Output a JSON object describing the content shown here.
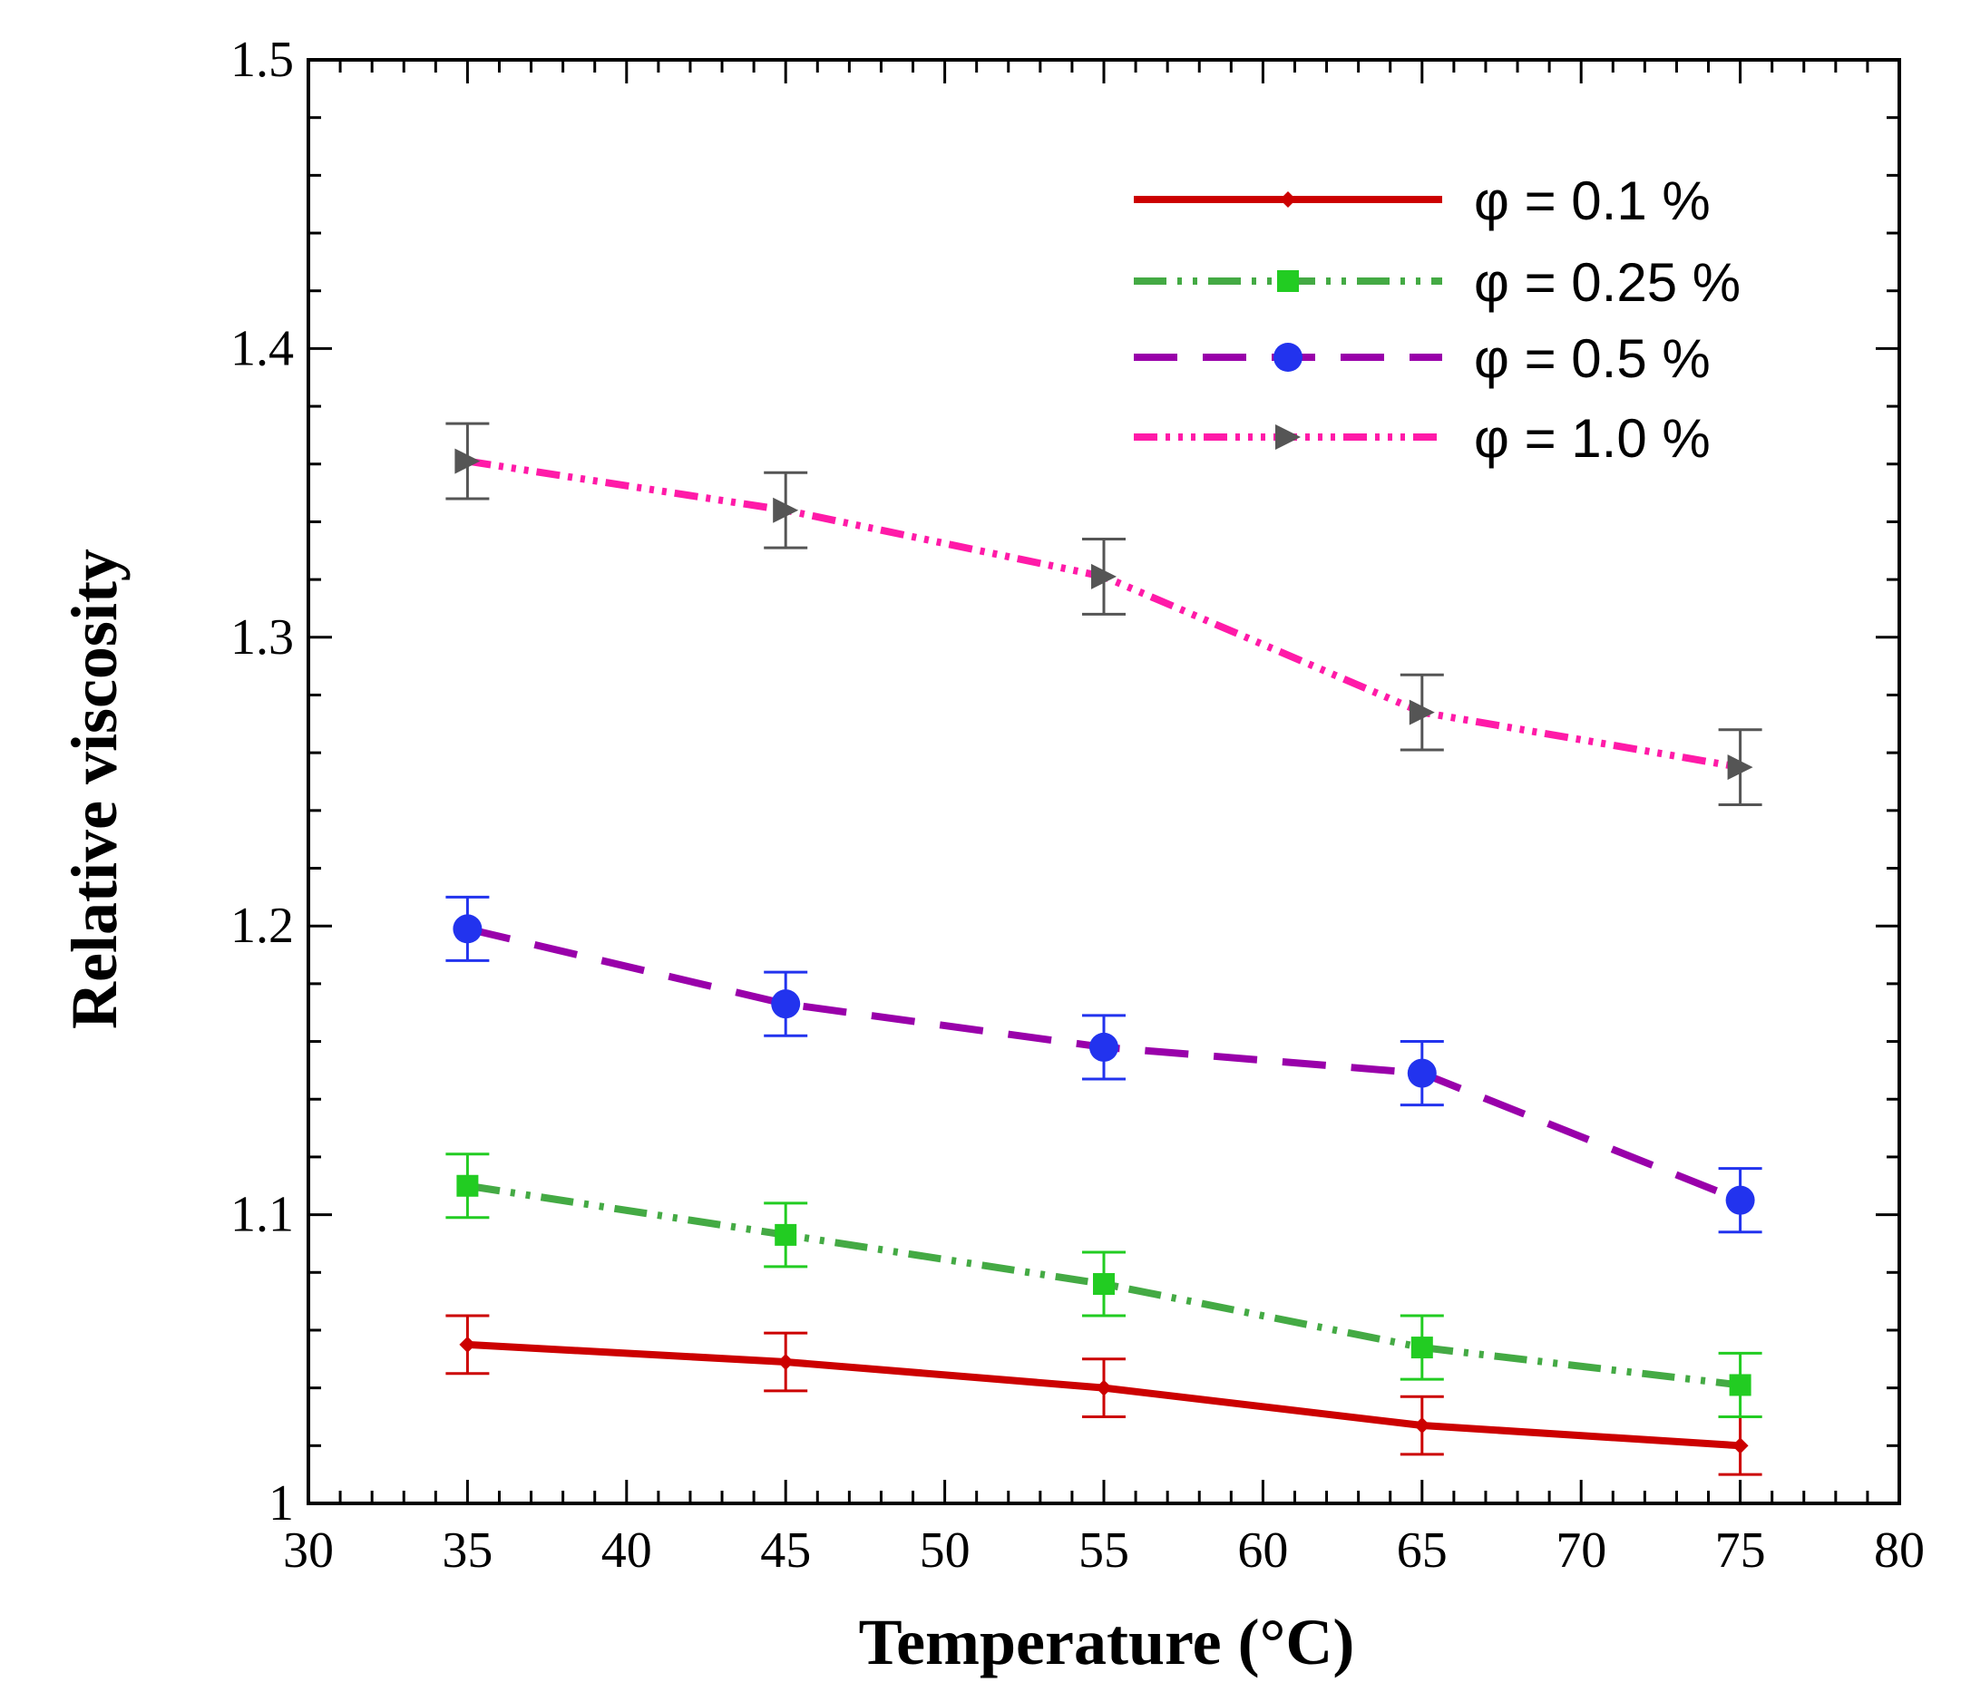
{
  "chart_data": {
    "type": "line",
    "xlabel": "Temperature (°C)",
    "ylabel": "Relative viscosity",
    "xlim": [
      30,
      80
    ],
    "ylim": [
      1,
      1.5
    ],
    "x_ticks": [
      30,
      35,
      40,
      45,
      50,
      55,
      60,
      65,
      70,
      75,
      80
    ],
    "x_tick_labels": [
      "30",
      "35",
      "40",
      "45",
      "50",
      "55",
      "60",
      "65",
      "70",
      "75",
      "80"
    ],
    "y_ticks": [
      1,
      1.1,
      1.2,
      1.3,
      1.4,
      1.5
    ],
    "y_tick_labels": [
      "1",
      "1.1",
      "1.2",
      "1.3",
      "1.4",
      "1.5"
    ],
    "grid": false,
    "legend_position": "top-right",
    "x": [
      35,
      45,
      55,
      65,
      75
    ],
    "series": [
      {
        "name": "φ = 0.1 %",
        "values": [
          1.055,
          1.049,
          1.04,
          1.027,
          1.02
        ],
        "error": [
          0.01,
          0.01,
          0.01,
          0.01,
          0.01
        ],
        "color": "#cc0000",
        "errorbar_color": "#cc0000",
        "marker": "diamond",
        "line_style": "solid"
      },
      {
        "name": "φ = 0.25 %",
        "values": [
          1.11,
          1.093,
          1.076,
          1.054,
          1.041
        ],
        "error": [
          0.011,
          0.011,
          0.011,
          0.011,
          0.011
        ],
        "color": "#44aa44",
        "marker_color": "#22cc22",
        "errorbar_color": "#22cc22",
        "marker": "square",
        "line_style": "dash-dot-dot"
      },
      {
        "name": "φ = 0.5 %",
        "values": [
          1.199,
          1.173,
          1.158,
          1.149,
          1.105
        ],
        "error": [
          0.011,
          0.011,
          0.011,
          0.011,
          0.011
        ],
        "color": "#9900aa",
        "marker_color": "#2233ee",
        "errorbar_color": "#2233ee",
        "marker": "circle",
        "line_style": "long-dash"
      },
      {
        "name": "φ = 1.0 %",
        "values": [
          1.361,
          1.344,
          1.321,
          1.274,
          1.255
        ],
        "error": [
          0.013,
          0.013,
          0.013,
          0.013,
          0.013
        ],
        "color": "#ff1aa8",
        "marker_color": "#555555",
        "errorbar_color": "#555555",
        "marker": "triangle-right",
        "line_style": "dash-dot-dot-dot"
      }
    ]
  }
}
